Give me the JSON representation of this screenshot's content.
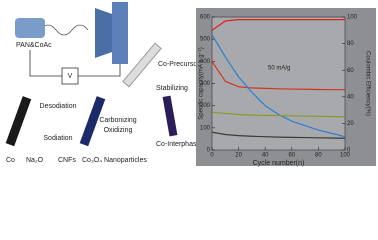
{
  "diagram": {
    "labels": {
      "precursor_solution": "PAN&CoAc",
      "voltage": "V",
      "co_precursor": "Co-Precursor",
      "stabilizing": "Stabilizing",
      "co_interphase": "Co-Interphase",
      "carbonizing": "Carbonizing",
      "oxidizing": "Oxidizing",
      "desodiation": "Desodiation",
      "sodiation": "Sodiation",
      "co": "Co",
      "na2o": "Na₂O",
      "cnfs": "CNFs",
      "nanoparticles": "Co₃O₄ Nanoparticles"
    }
  },
  "chart_data": {
    "type": "line",
    "xlabel": "Cycle number(n)",
    "ylabel": "Specific capacity(mA h g⁻¹)",
    "y2label": "Coulombic Efficiency(%)",
    "annotation": "50 mA/g",
    "x": [
      0,
      10,
      20,
      30,
      40,
      50,
      60,
      70,
      80,
      90,
      100
    ],
    "series": [
      {
        "color": "#e0201b",
        "axis": "y2",
        "values": [
          90,
          97,
          98,
          98,
          98,
          98,
          98,
          98,
          98,
          98,
          98
        ]
      },
      {
        "color": "#d2331f",
        "values": [
          400,
          310,
          285,
          280,
          278,
          276,
          275,
          274,
          273,
          272,
          272
        ]
      },
      {
        "color": "#2e7fd0",
        "values": [
          520,
          420,
          330,
          260,
          200,
          160,
          130,
          110,
          90,
          75,
          60
        ]
      },
      {
        "color": "#8a9a2a",
        "values": [
          170,
          165,
          160,
          158,
          156,
          155,
          154,
          153,
          152,
          151,
          150
        ]
      },
      {
        "color": "#3a3a3a",
        "values": [
          80,
          70,
          65,
          62,
          60,
          58,
          57,
          56,
          55,
          54,
          53
        ]
      }
    ],
    "xlim": [
      0,
      100
    ],
    "xticks": [
      0,
      20,
      40,
      60,
      80,
      100
    ],
    "ylim": [
      0,
      600
    ],
    "yticks": [
      0,
      100,
      200,
      300,
      400,
      500,
      600
    ],
    "y2lim": [
      0,
      100
    ],
    "y2ticks": [
      0,
      20,
      40,
      60,
      80,
      100
    ]
  }
}
